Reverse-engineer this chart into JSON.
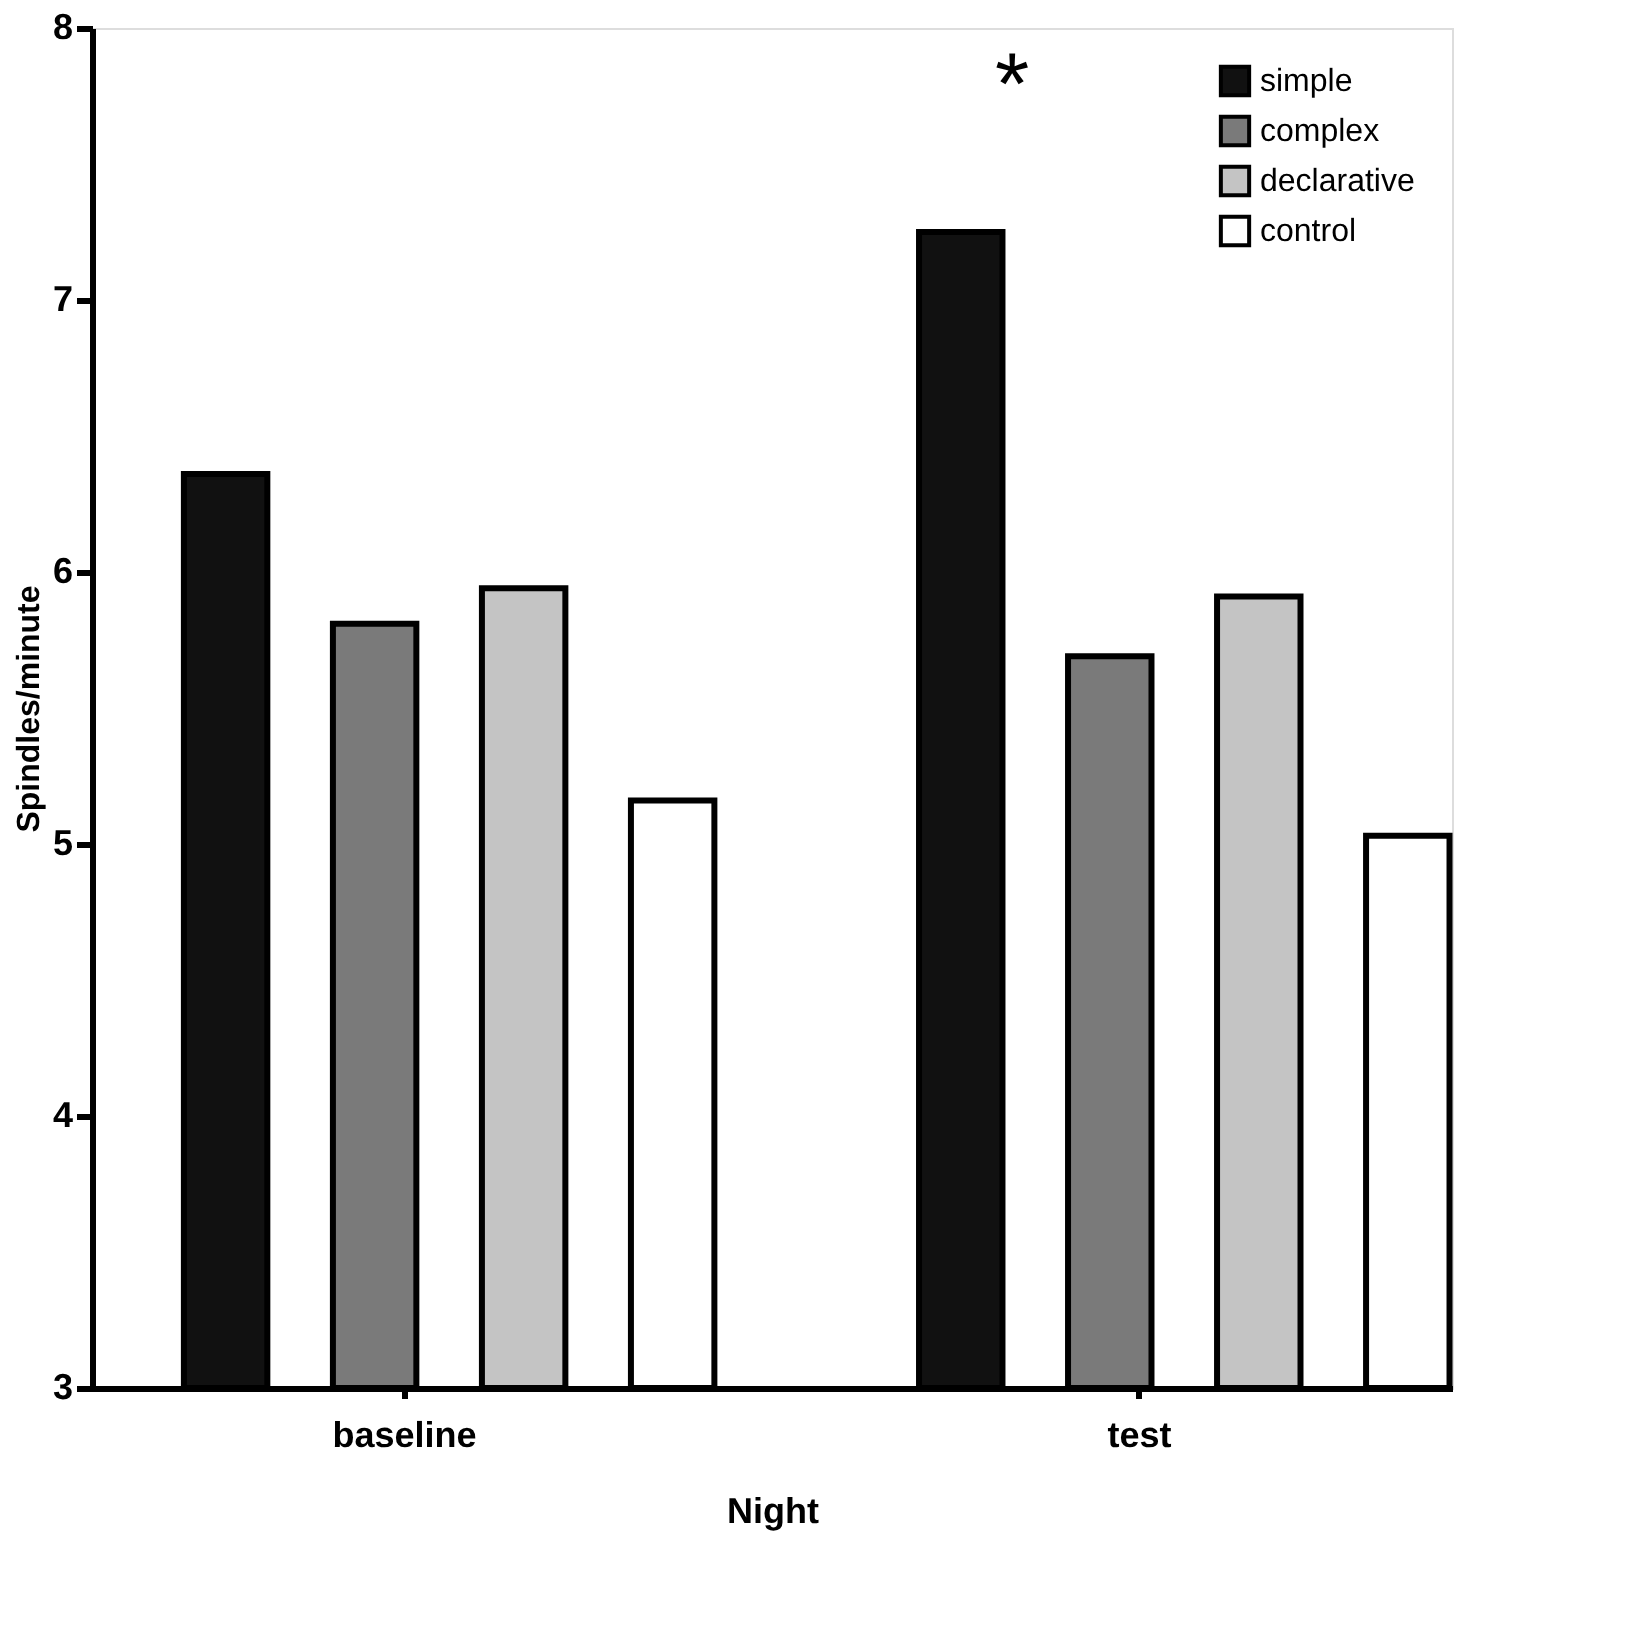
{
  "chart_data": {
    "type": "bar",
    "xlabel": "Night",
    "ylabel": "Spindles/minute",
    "categories": [
      "baseline",
      "test"
    ],
    "series": [
      {
        "name": "simple",
        "color": "#111111",
        "values": [
          6.36,
          7.25
        ]
      },
      {
        "name": "complex",
        "color": "#7a7a7a",
        "values": [
          5.81,
          5.69
        ]
      },
      {
        "name": "declarative",
        "color": "#c4c4c4",
        "values": [
          5.94,
          5.91
        ]
      },
      {
        "name": "control",
        "color": "#ffffff",
        "values": [
          5.16,
          5.03
        ]
      }
    ],
    "ylim": [
      3,
      8
    ],
    "yticks": [
      3,
      4,
      5,
      6,
      7,
      8
    ],
    "grid": false,
    "legend": "top right",
    "annotations": [
      "*"
    ]
  }
}
